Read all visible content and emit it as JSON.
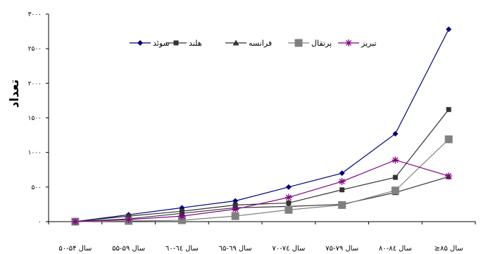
{
  "chart_data": {
    "type": "line",
    "title": "",
    "xlabel": "",
    "ylabel": "تعداد",
    "ylim": [
      0,
      3000
    ],
    "y_ticks": [
      {
        "value": 0,
        "label": "۰"
      },
      {
        "value": 500,
        "label": "۵۰۰"
      },
      {
        "value": 1000,
        "label": "۱۰۰۰"
      },
      {
        "value": 1500,
        "label": "۱۵۰۰"
      },
      {
        "value": 2000,
        "label": "۲۰۰۰"
      },
      {
        "value": 2500,
        "label": "۲۵۰۰"
      },
      {
        "value": 3000,
        "label": "۳۰۰۰"
      }
    ],
    "categories": [
      "سال ۵۴-۵۰",
      "سال ۵۹-۵۵",
      "سال ٦٤-٦۰",
      "سال ٦۹-٦۵",
      "سال ۷٤-۷۰",
      "سال ۷۹-۷۵",
      "سال ۸٤-۸۰",
      "سال ۸۵≤"
    ],
    "grid": false,
    "legend_position": "top-right",
    "series": [
      {
        "name": "سوئد",
        "color": "#000080",
        "marker": "diamond",
        "values": [
          0,
          100,
          200,
          300,
          500,
          700,
          1270,
          2780
        ]
      },
      {
        "name": "هلند",
        "color": "#333333",
        "marker": "square",
        "values": [
          0,
          80,
          150,
          240,
          270,
          460,
          640,
          1620
        ]
      },
      {
        "name": "فرانسه",
        "color": "#333333",
        "marker": "triangle",
        "values": [
          0,
          40,
          120,
          200,
          220,
          250,
          420,
          650
        ]
      },
      {
        "name": "پرتقال",
        "color": "#808080",
        "marker": "square-large",
        "values": [
          0,
          10,
          20,
          80,
          170,
          240,
          450,
          1190
        ]
      },
      {
        "name": "تبریز",
        "color": "#800080",
        "marker": "asterisk",
        "values": [
          0,
          30,
          80,
          180,
          350,
          580,
          890,
          660
        ]
      }
    ]
  }
}
